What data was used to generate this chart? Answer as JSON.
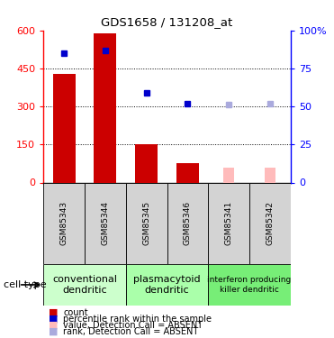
{
  "title": "GDS1658 / 131208_at",
  "samples": [
    "GSM85343",
    "GSM85344",
    "GSM85345",
    "GSM85346",
    "GSM85341",
    "GSM85342"
  ],
  "bar_values": [
    430,
    590,
    150,
    75,
    0,
    0
  ],
  "bar_colors": [
    "#cc0000",
    "#cc0000",
    "#cc0000",
    "#cc0000",
    "#ffbbbb",
    "#ffbbbb"
  ],
  "dot_percentiles": [
    85,
    87,
    59,
    52,
    51,
    52
  ],
  "dot_colors": [
    "#0000cc",
    "#0000cc",
    "#0000cc",
    "#0000cc",
    "#aaaadd",
    "#aaaadd"
  ],
  "ylim_left": [
    0,
    600
  ],
  "ylim_right": [
    0,
    100
  ],
  "yticks_left": [
    0,
    150,
    300,
    450,
    600
  ],
  "ytick_labels_left": [
    "0",
    "150",
    "300",
    "450",
    "600"
  ],
  "yticks_right": [
    0,
    25,
    50,
    75,
    100
  ],
  "ytick_labels_right": [
    "0",
    "25",
    "50",
    "75",
    "100%"
  ],
  "cell_groups": [
    {
      "label": "conventional\ndendritic",
      "start": 0,
      "end": 2,
      "color": "#ccffcc"
    },
    {
      "label": "plasmacytoid\ndendritic",
      "start": 2,
      "end": 4,
      "color": "#aaffaa"
    },
    {
      "label": "interferon producing\nkiller dendritic",
      "start": 4,
      "end": 6,
      "color": "#77ee77"
    }
  ],
  "legend_items": [
    {
      "label": "count",
      "color": "#cc0000"
    },
    {
      "label": "percentile rank within the sample",
      "color": "#0000cc"
    },
    {
      "label": "value, Detection Call = ABSENT",
      "color": "#ffbbbb"
    },
    {
      "label": "rank, Detection Call = ABSENT",
      "color": "#aaaadd"
    }
  ],
  "cell_type_label": "cell type",
  "bar_absent_values": [
    0,
    0,
    0,
    0,
    60,
    60
  ],
  "gridline_yticks": [
    150,
    300,
    450
  ]
}
